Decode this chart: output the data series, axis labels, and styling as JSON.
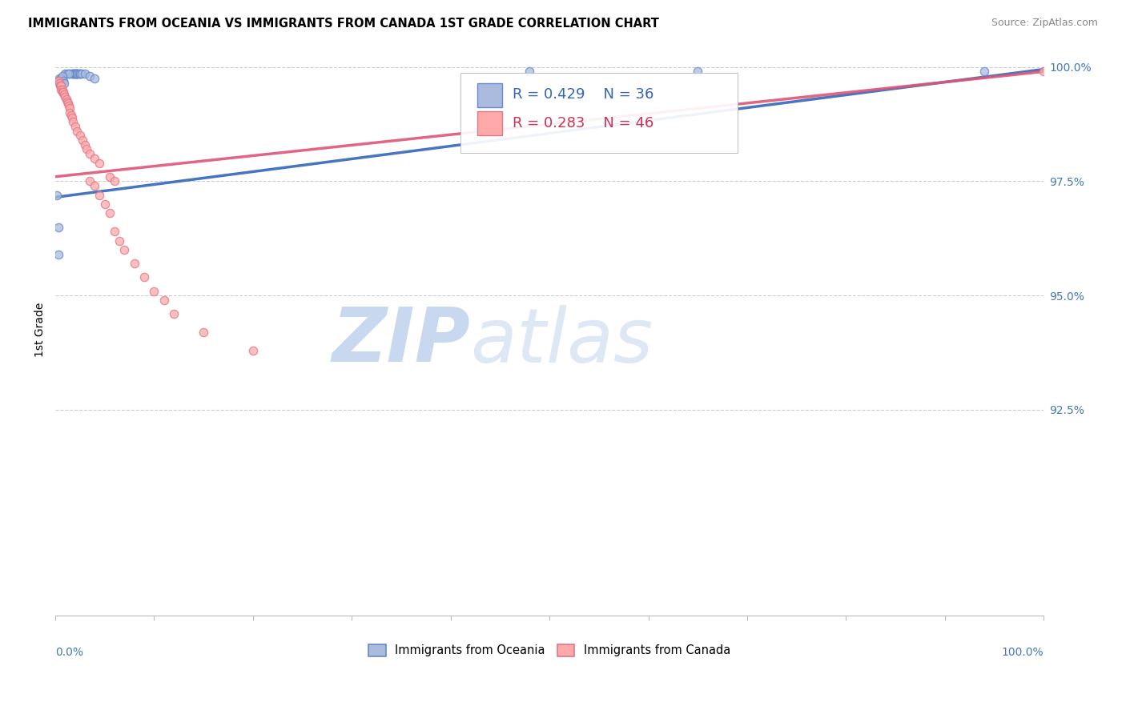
{
  "title": "IMMIGRANTS FROM OCEANIA VS IMMIGRANTS FROM CANADA 1ST GRADE CORRELATION CHART",
  "source": "Source: ZipAtlas.com",
  "ylabel": "1st Grade",
  "legend_blue_label": "Immigrants from Oceania",
  "legend_pink_label": "Immigrants from Canada",
  "R_blue": 0.429,
  "N_blue": 36,
  "R_pink": 0.283,
  "N_pink": 46,
  "blue_fill": "#AABBDD",
  "blue_edge": "#6688CC",
  "pink_fill": "#FFAAAA",
  "pink_edge": "#DD7788",
  "blue_line": "#3366BB",
  "pink_line": "#DD5577",
  "xlim": [
    0.0,
    1.0
  ],
  "ylim": [
    0.88,
    1.005
  ],
  "yticks": [
    1.0,
    0.975,
    0.95,
    0.925
  ],
  "ytick_labels": [
    "100.0%",
    "97.5%",
    "95.0%",
    "92.5%"
  ],
  "oceania_x": [
    0.015,
    0.017,
    0.018,
    0.018,
    0.019,
    0.02,
    0.02,
    0.021,
    0.021,
    0.022,
    0.022,
    0.023,
    0.024,
    0.025,
    0.025,
    0.01,
    0.012,
    0.014,
    0.027,
    0.03,
    0.035,
    0.04,
    0.003,
    0.004,
    0.005,
    0.006,
    0.006,
    0.007,
    0.008,
    0.009,
    0.48,
    0.65,
    0.94,
    0.002,
    0.003,
    0.003
  ],
  "oceania_y": [
    0.9985,
    0.9985,
    0.9985,
    0.9985,
    0.9985,
    0.9985,
    0.9985,
    0.9985,
    0.9985,
    0.9985,
    0.9985,
    0.9985,
    0.9985,
    0.9985,
    0.9985,
    0.9985,
    0.9985,
    0.9985,
    0.9985,
    0.9985,
    0.998,
    0.9975,
    0.997,
    0.9975,
    0.9965,
    0.9975,
    0.9965,
    0.998,
    0.997,
    0.9965,
    0.999,
    0.999,
    0.999,
    0.972,
    0.965,
    0.959
  ],
  "canada_x": [
    0.003,
    0.004,
    0.005,
    0.006,
    0.006,
    0.007,
    0.007,
    0.008,
    0.009,
    0.01,
    0.011,
    0.012,
    0.013,
    0.014,
    0.015,
    0.015,
    0.016,
    0.017,
    0.018,
    0.02,
    0.022,
    0.025,
    0.028,
    0.03,
    0.032,
    0.035,
    0.04,
    0.045,
    0.055,
    0.06,
    0.035,
    0.04,
    0.045,
    0.05,
    0.055,
    0.06,
    0.065,
    0.07,
    0.08,
    0.09,
    0.1,
    0.11,
    0.12,
    0.15,
    0.2,
    1.0
  ],
  "canada_y": [
    0.997,
    0.9965,
    0.996,
    0.996,
    0.995,
    0.995,
    0.9945,
    0.9945,
    0.994,
    0.9935,
    0.993,
    0.9925,
    0.992,
    0.9915,
    0.991,
    0.99,
    0.9895,
    0.989,
    0.988,
    0.987,
    0.986,
    0.985,
    0.984,
    0.983,
    0.982,
    0.981,
    0.98,
    0.979,
    0.976,
    0.975,
    0.975,
    0.974,
    0.972,
    0.97,
    0.968,
    0.964,
    0.962,
    0.96,
    0.957,
    0.954,
    0.951,
    0.949,
    0.946,
    0.942,
    0.938,
    0.999
  ]
}
